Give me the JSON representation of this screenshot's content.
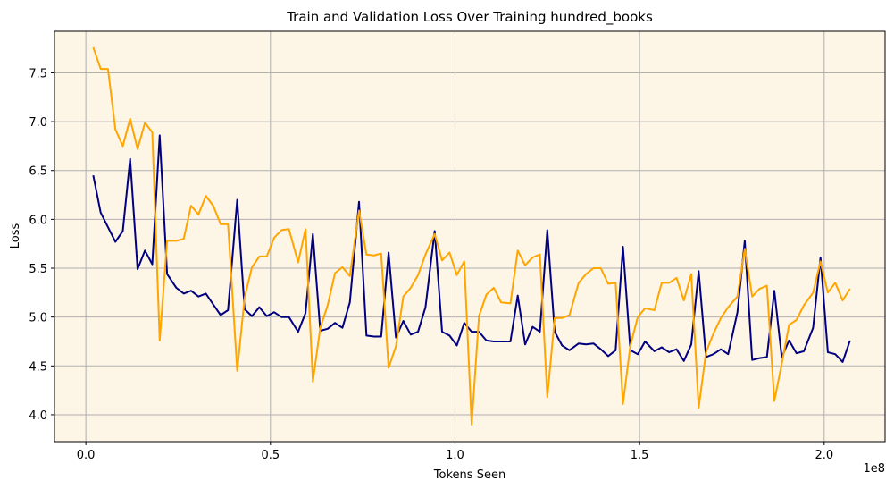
{
  "chart_data": {
    "type": "line",
    "title": "Train and Validation Loss Over Training hundred_books",
    "xlabel": "Tokens Seen",
    "ylabel": "Loss",
    "x_offset_label": "1e8",
    "xlim": [
      -0.085,
      2.165
    ],
    "ylim": [
      3.725,
      7.925
    ],
    "x_scale_factor": 100000000,
    "xticks": [
      0.0,
      0.5,
      1.0,
      1.5,
      2.0
    ],
    "xtick_labels": [
      "0.0",
      "0.5",
      "1.0",
      "1.5",
      "2.0"
    ],
    "yticks": [
      4.0,
      4.5,
      5.0,
      5.5,
      6.0,
      6.5,
      7.0,
      7.5
    ],
    "ytick_labels": [
      "4.0",
      "4.5",
      "5.0",
      "5.5",
      "6.0",
      "6.5",
      "7.0",
      "7.5"
    ],
    "grid": true,
    "background_color": "#fdf5e6",
    "series": [
      {
        "color": "#000080",
        "x": [
          0.02,
          0.04,
          0.06,
          0.08,
          0.1,
          0.12,
          0.14,
          0.16,
          0.18,
          0.2,
          0.22,
          0.245,
          0.265,
          0.285,
          0.305,
          0.325,
          0.345,
          0.365,
          0.385,
          0.41,
          0.43,
          0.45,
          0.47,
          0.49,
          0.51,
          0.53,
          0.55,
          0.575,
          0.595,
          0.615,
          0.635,
          0.655,
          0.675,
          0.695,
          0.715,
          0.74,
          0.76,
          0.78,
          0.8,
          0.82,
          0.84,
          0.86,
          0.88,
          0.9,
          0.92,
          0.945,
          0.965,
          0.985,
          1.005,
          1.025,
          1.045,
          1.065,
          1.085,
          1.105,
          1.125,
          1.15,
          1.17,
          1.19,
          1.21,
          1.23,
          1.25,
          1.27,
          1.29,
          1.31,
          1.335,
          1.355,
          1.375,
          1.395,
          1.415,
          1.435,
          1.455,
          1.475,
          1.495,
          1.515,
          1.54,
          1.56,
          1.58,
          1.6,
          1.62,
          1.64,
          1.66,
          1.68,
          1.7,
          1.72,
          1.74,
          1.765,
          1.785,
          1.805,
          1.825,
          1.845,
          1.865,
          1.885,
          1.905,
          1.925,
          1.945,
          1.97,
          1.99,
          2.01,
          2.03,
          2.05,
          2.07
        ],
        "values": [
          6.45,
          6.07,
          5.92,
          5.77,
          5.88,
          6.62,
          5.49,
          5.68,
          5.54,
          6.86,
          5.44,
          5.3,
          5.24,
          5.27,
          5.21,
          5.24,
          5.13,
          5.02,
          5.07,
          6.2,
          5.08,
          5.01,
          5.1,
          5.01,
          5.05,
          5.0,
          5.0,
          4.85,
          5.04,
          5.85,
          4.86,
          4.88,
          4.94,
          4.89,
          5.15,
          6.18,
          4.81,
          4.8,
          4.8,
          5.66,
          4.79,
          4.96,
          4.82,
          4.85,
          5.1,
          5.88,
          4.85,
          4.81,
          4.71,
          4.94,
          4.85,
          4.85,
          4.76,
          4.75,
          4.75,
          4.75,
          5.22,
          4.72,
          4.9,
          4.85,
          5.89,
          4.85,
          4.71,
          4.66,
          4.73,
          4.72,
          4.73,
          4.67,
          4.6,
          4.66,
          5.72,
          4.66,
          4.62,
          4.75,
          4.65,
          4.69,
          4.64,
          4.67,
          4.55,
          4.72,
          5.47,
          4.59,
          4.62,
          4.67,
          4.62,
          5.05,
          5.78,
          4.56,
          4.58,
          4.59,
          5.27,
          4.59,
          4.76,
          4.63,
          4.65,
          4.89,
          5.61,
          4.64,
          4.62,
          4.54,
          4.76
        ]
      },
      {
        "color": "#ffa500",
        "x": [
          0.02,
          0.04,
          0.06,
          0.08,
          0.1,
          0.12,
          0.14,
          0.16,
          0.18,
          0.2,
          0.22,
          0.245,
          0.265,
          0.285,
          0.305,
          0.325,
          0.345,
          0.365,
          0.385,
          0.41,
          0.43,
          0.45,
          0.47,
          0.49,
          0.51,
          0.53,
          0.55,
          0.575,
          0.595,
          0.615,
          0.635,
          0.655,
          0.675,
          0.695,
          0.715,
          0.74,
          0.76,
          0.78,
          0.8,
          0.82,
          0.84,
          0.86,
          0.88,
          0.9,
          0.92,
          0.945,
          0.965,
          0.985,
          1.005,
          1.025,
          1.045,
          1.065,
          1.085,
          1.105,
          1.125,
          1.15,
          1.17,
          1.19,
          1.21,
          1.23,
          1.25,
          1.27,
          1.29,
          1.31,
          1.335,
          1.355,
          1.375,
          1.395,
          1.415,
          1.435,
          1.455,
          1.475,
          1.495,
          1.515,
          1.54,
          1.56,
          1.58,
          1.6,
          1.62,
          1.64,
          1.66,
          1.68,
          1.7,
          1.72,
          1.74,
          1.765,
          1.785,
          1.805,
          1.825,
          1.845,
          1.865,
          1.885,
          1.905,
          1.925,
          1.945,
          1.97,
          1.99,
          2.01,
          2.03,
          2.05,
          2.07
        ],
        "values": [
          7.76,
          7.54,
          7.54,
          6.92,
          6.75,
          7.03,
          6.72,
          6.99,
          6.89,
          4.76,
          5.78,
          5.78,
          5.8,
          6.14,
          6.05,
          6.24,
          6.14,
          5.95,
          5.95,
          4.45,
          5.2,
          5.51,
          5.62,
          5.62,
          5.81,
          5.89,
          5.9,
          5.56,
          5.9,
          4.34,
          4.89,
          5.12,
          5.45,
          5.51,
          5.42,
          6.09,
          5.64,
          5.63,
          5.65,
          4.48,
          4.7,
          5.21,
          5.3,
          5.43,
          5.64,
          5.85,
          5.58,
          5.66,
          5.43,
          5.57,
          3.9,
          5.01,
          5.23,
          5.3,
          5.15,
          5.14,
          5.68,
          5.53,
          5.61,
          5.64,
          4.18,
          4.99,
          4.99,
          5.02,
          5.35,
          5.44,
          5.5,
          5.5,
          5.34,
          5.35,
          4.11,
          4.71,
          5.0,
          5.09,
          5.07,
          5.35,
          5.35,
          5.4,
          5.17,
          5.44,
          4.07,
          4.64,
          4.83,
          4.99,
          5.1,
          5.21,
          5.7,
          5.21,
          5.29,
          5.32,
          4.14,
          4.52,
          4.92,
          4.97,
          5.12,
          5.25,
          5.57,
          5.25,
          5.35,
          5.17,
          5.29
        ]
      }
    ]
  }
}
